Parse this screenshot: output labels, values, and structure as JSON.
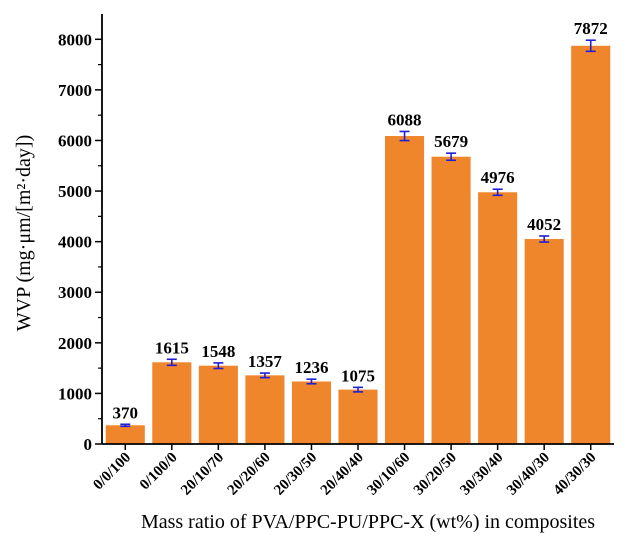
{
  "chart_data": {
    "type": "bar",
    "title": "",
    "xlabel": "Mass ratio of PVA/PPC-PU/PPC-X (wt%) in composites",
    "ylabel": "WVP (mg·μm/[m²·day])",
    "categories": [
      "0/0/100",
      "0/100/0",
      "20/10/70",
      "20/20/60",
      "20/30/50",
      "20/40/40",
      "30/10/60",
      "30/20/50",
      "30/30/40",
      "30/40/30",
      "40/30/30"
    ],
    "values": [
      370,
      1615,
      1548,
      1357,
      1236,
      1075,
      6088,
      5679,
      4976,
      4052,
      7872
    ],
    "value_labels": [
      "370",
      "1615",
      "1548",
      "1357",
      "1236",
      "1075",
      "6088",
      "5679",
      "4976",
      "4052",
      "7872"
    ],
    "errors": [
      20,
      60,
      55,
      45,
      45,
      45,
      90,
      70,
      60,
      60,
      110
    ],
    "ylim": [
      0,
      8500
    ],
    "yticks": [
      "0",
      "1000",
      "2000",
      "3000",
      "4000",
      "5000",
      "6000",
      "7000",
      "8000"
    ],
    "grid": false,
    "legend": "none",
    "colors": {
      "bar": "#F0862C",
      "error_bar": "#1F1FD8",
      "axis": "#000000"
    }
  }
}
